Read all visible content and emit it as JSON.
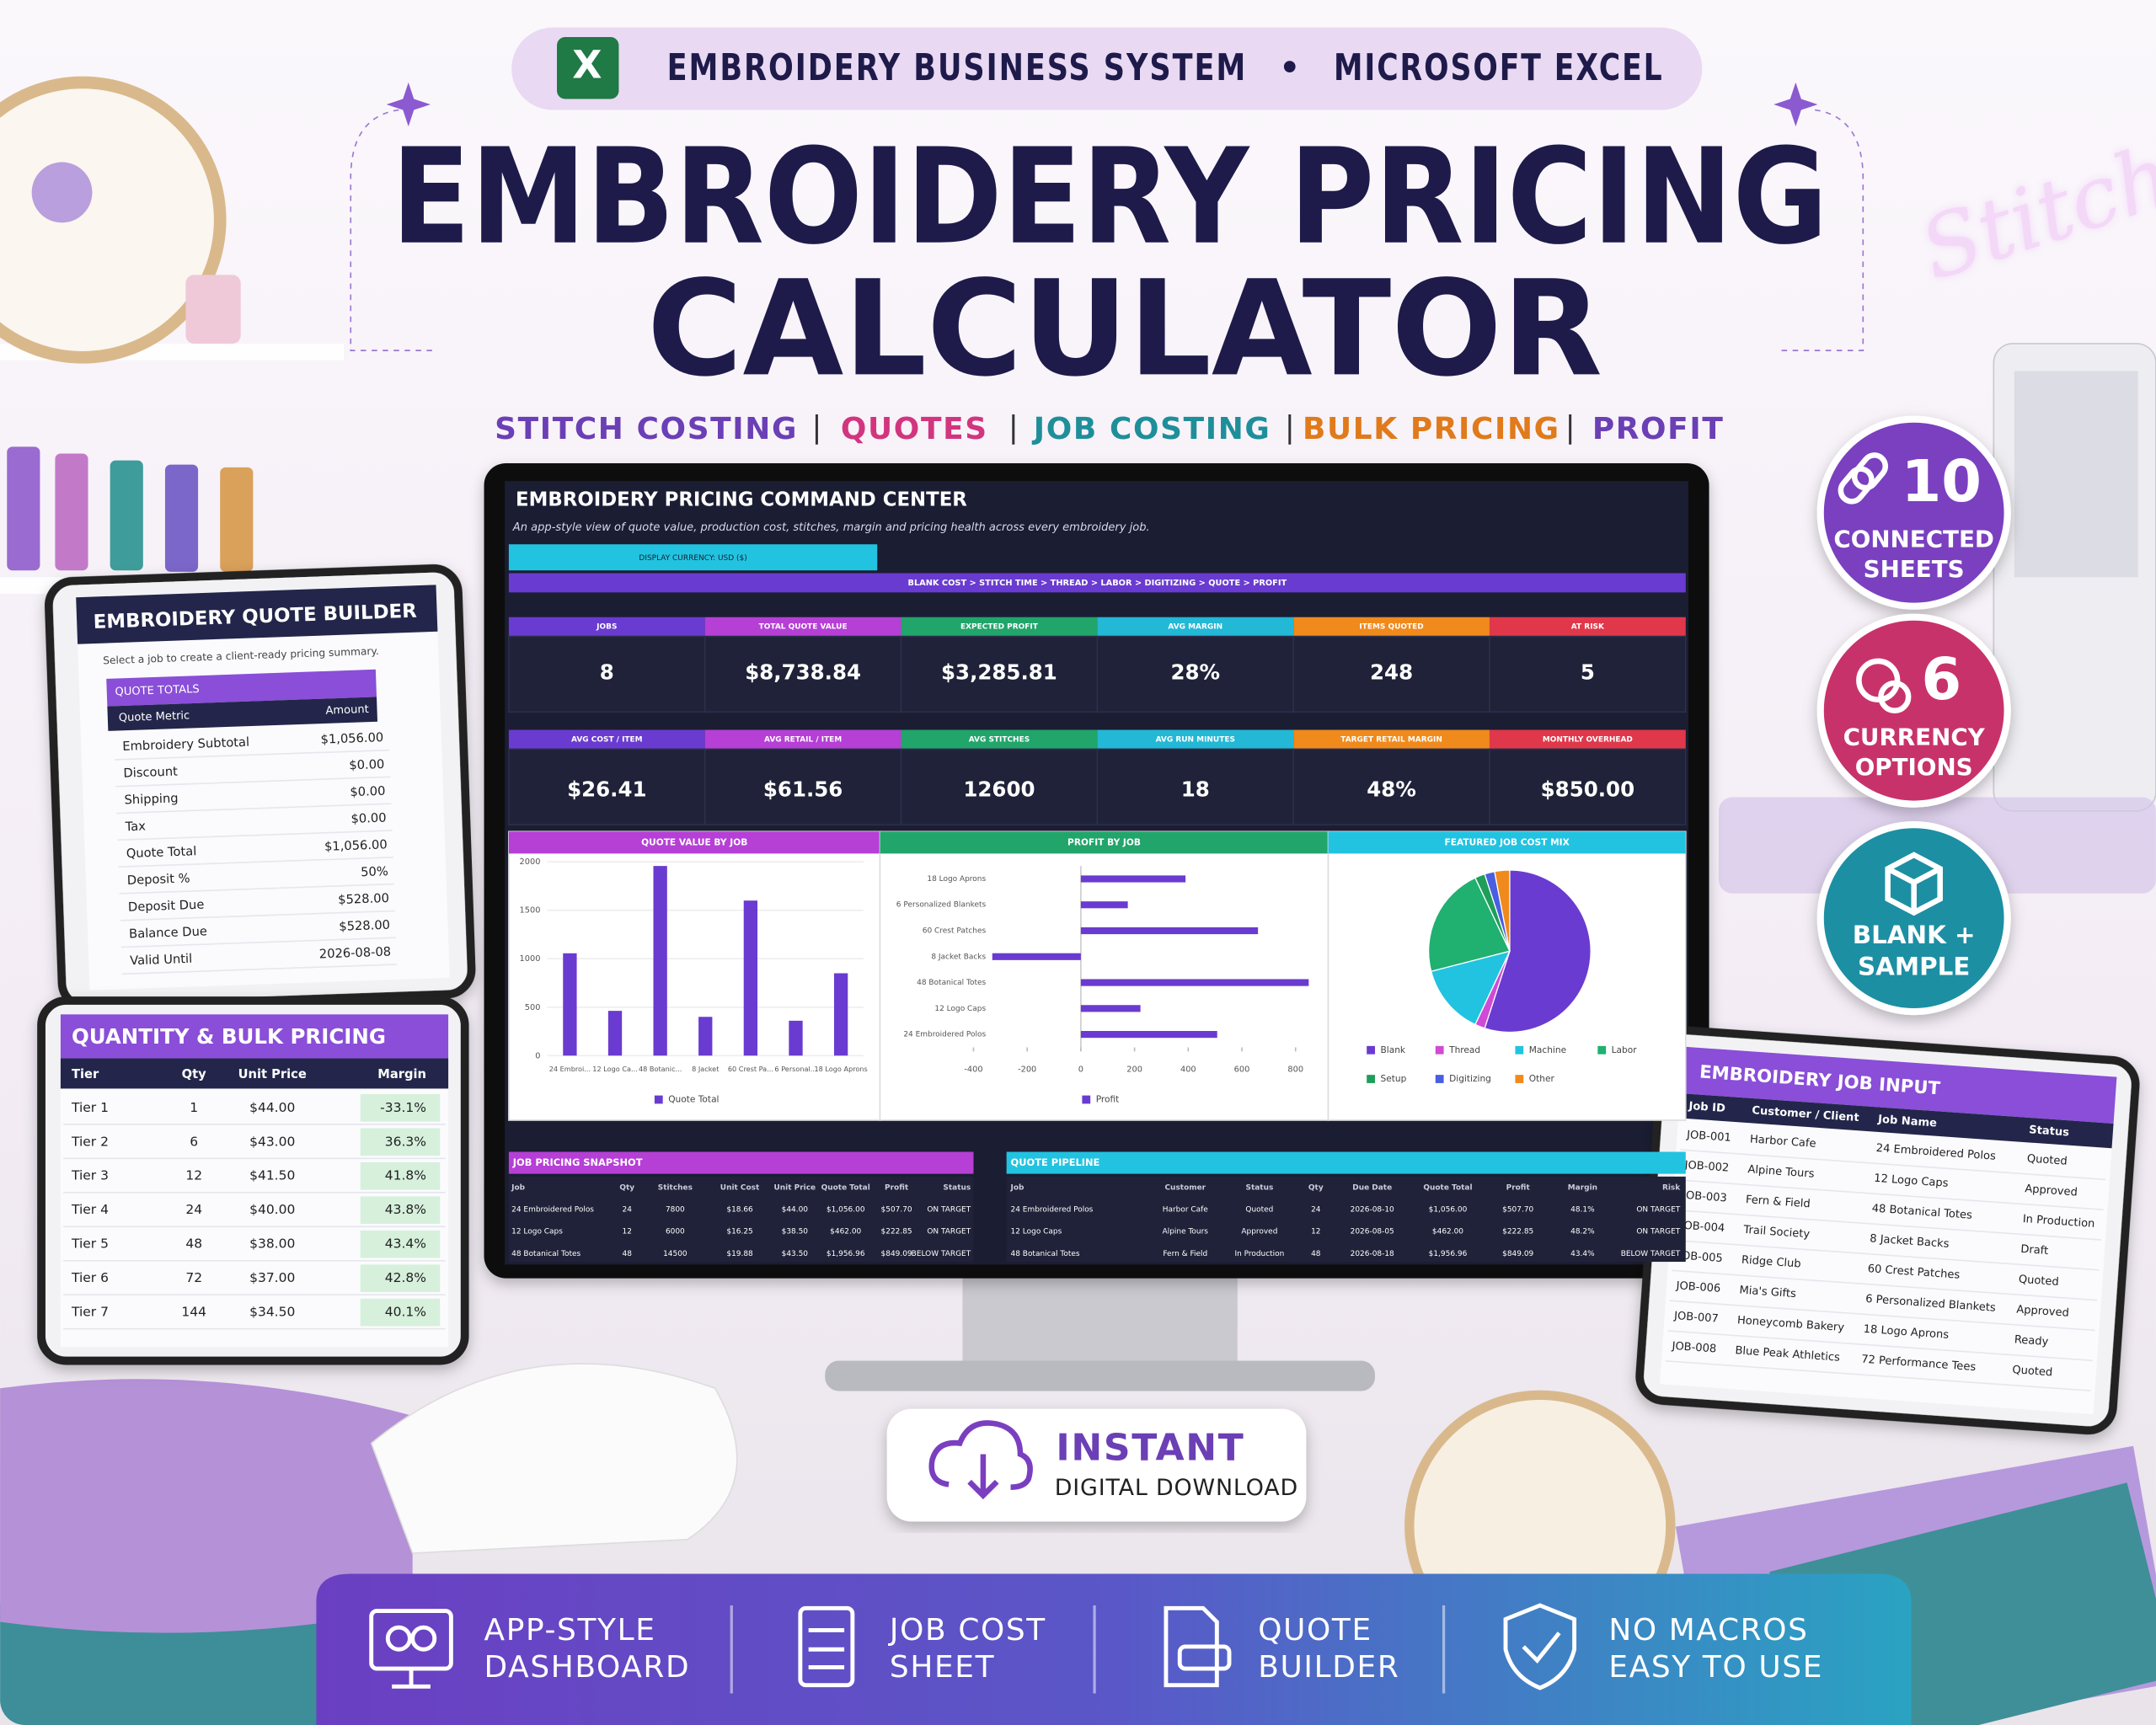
{
  "header": {
    "excel_icon": "X",
    "badge_left": "EMBROIDERY BUSINESS SYSTEM",
    "badge_sep": "•",
    "badge_right": "MICROSOFT EXCEL",
    "title_line1": "EMBROIDERY PRICING",
    "title_line2": "CALCULATOR",
    "features": [
      "STITCH COSTING",
      "QUOTES",
      "JOB COSTING",
      "BULK PRICING",
      "PROFIT"
    ],
    "separator": "|"
  },
  "background_sign": "Stitch",
  "side_badges": [
    {
      "number": "10",
      "line1": "CONNECTED",
      "line2": "SHEETS"
    },
    {
      "number": "6",
      "line1": "CURRENCY",
      "line2": "OPTIONS"
    },
    {
      "line1": "BLANK +",
      "line2": "SAMPLE"
    }
  ],
  "dashboard": {
    "title": "EMBROIDERY PRICING COMMAND CENTER",
    "subtitle": "An app-style view of quote value, production cost, stitches, margin and pricing health across every embroidery job.",
    "currency": "DISPLAY CURRENCY: USD ($)",
    "flow": "BLANK COST  >  STITCH TIME  >  THREAD  >  LABOR  >  DIGITIZING  >  QUOTE  >  PROFIT",
    "kpi_row1": [
      {
        "label": "JOBS",
        "value": "8"
      },
      {
        "label": "TOTAL QUOTE VALUE",
        "value": "$8,738.84"
      },
      {
        "label": "EXPECTED PROFIT",
        "value": "$3,285.81"
      },
      {
        "label": "AVG MARGIN",
        "value": "28%"
      },
      {
        "label": "ITEMS QUOTED",
        "value": "248"
      },
      {
        "label": "AT RISK",
        "value": "5"
      }
    ],
    "kpi_row2": [
      {
        "label": "AVG COST / ITEM",
        "value": "$26.41"
      },
      {
        "label": "AVG RETAIL / ITEM",
        "value": "$61.56"
      },
      {
        "label": "AVG STITCHES",
        "value": "12600"
      },
      {
        "label": "AVG RUN MINUTES",
        "value": "18"
      },
      {
        "label": "TARGET RETAIL MARGIN",
        "value": "48%"
      },
      {
        "label": "MONTHLY OVERHEAD",
        "value": "$850.00"
      }
    ],
    "snapshot": {
      "title": "JOB PRICING SNAPSHOT",
      "columns": [
        "Job",
        "Qty",
        "Stitches",
        "Unit Cost",
        "Unit Price",
        "Quote Total",
        "Profit",
        "Status"
      ],
      "rows": [
        [
          "24 Embroidered Polos",
          "24",
          "7800",
          "$18.66",
          "$44.00",
          "$1,056.00",
          "$507.70",
          "ON TARGET"
        ],
        [
          "12 Logo Caps",
          "12",
          "6000",
          "$16.25",
          "$38.50",
          "$462.00",
          "$222.85",
          "ON TARGET"
        ],
        [
          "48 Botanical Totes",
          "48",
          "14500",
          "$19.88",
          "$43.50",
          "$1,956.96",
          "$849.09",
          "BELOW TARGET"
        ]
      ]
    },
    "pipeline": {
      "title": "QUOTE PIPELINE",
      "columns": [
        "Job",
        "Customer",
        "Status",
        "Qty",
        "Due Date",
        "Quote Total",
        "Profit",
        "Margin",
        "Risk"
      ],
      "rows": [
        [
          "24 Embroidered Polos",
          "Harbor Cafe",
          "Quoted",
          "24",
          "2026-08-10",
          "$1,056.00",
          "$507.70",
          "48.1%",
          "ON TARGET"
        ],
        [
          "12 Logo Caps",
          "Alpine Tours",
          "Approved",
          "12",
          "2026-08-05",
          "$462.00",
          "$222.85",
          "48.2%",
          "ON TARGET"
        ],
        [
          "48 Botanical Totes",
          "Fern & Field",
          "In Production",
          "48",
          "2026-08-18",
          "$1,956.96",
          "$849.09",
          "43.4%",
          "BELOW TARGET"
        ]
      ]
    }
  },
  "chart_data": [
    {
      "type": "bar",
      "title": "QUOTE VALUE BY JOB",
      "categories": [
        "24 Embroi...",
        "12 Logo Ca...",
        "48 Botanic...",
        "8 Jacket",
        "60 Crest Pa...",
        "6 Personal...",
        "18 Logo Aprons"
      ],
      "series": [
        {
          "name": "Quote Total",
          "color": "#6a3bd0",
          "values": [
            1056,
            462,
            1957,
            400,
            1600,
            360,
            850
          ]
        }
      ],
      "ylim": [
        0,
        2000
      ],
      "yticks": [
        0,
        500,
        1000,
        1500,
        2000
      ],
      "grid": true
    },
    {
      "type": "hbar",
      "title": "PROFIT BY JOB",
      "categories": [
        "18 Logo Aprons",
        "6 Personalized Blankets",
        "60 Crest Patches",
        "8 Jacket Backs",
        "48 Botanical Totes",
        "12 Logo Caps",
        "24 Embroidered Polos"
      ],
      "series": [
        {
          "name": "Profit",
          "color": "#6a3bd0",
          "values": [
            390,
            175,
            660,
            -330,
            849,
            222,
            508
          ]
        }
      ],
      "xlim": [
        -400,
        850
      ],
      "xticks": [
        -400,
        -200,
        0,
        200,
        400,
        600,
        800
      ]
    },
    {
      "type": "pie",
      "title": "FEATURED JOB COST MIX",
      "categories": [
        "Blank",
        "Thread",
        "Machine",
        "Labor",
        "Setup",
        "Digitizing",
        "Other"
      ],
      "values": [
        55,
        2,
        14,
        22,
        2,
        2,
        3
      ],
      "colors": [
        "#6a3bd0",
        "#d04ad6",
        "#22c3e0",
        "#20b070",
        "#1f9e5a",
        "#4a5ee0",
        "#f08a1c"
      ]
    }
  ],
  "quote_builder": {
    "title": "EMBROIDERY QUOTE BUILDER",
    "subtitle": "Select a job to create a client-ready pricing summary.",
    "section": "QUOTE TOTALS",
    "columns": [
      "Quote Metric",
      "Amount"
    ],
    "rows": [
      [
        "Embroidery Subtotal",
        "$1,056.00"
      ],
      [
        "Discount",
        "$0.00"
      ],
      [
        "Shipping",
        "$0.00"
      ],
      [
        "Tax",
        "$0.00"
      ],
      [
        "Quote Total",
        "$1,056.00"
      ],
      [
        "Deposit %",
        "50%"
      ],
      [
        "Deposit Due",
        "$528.00"
      ],
      [
        "Balance Due",
        "$528.00"
      ],
      [
        "Valid Until",
        "2026-08-08"
      ]
    ]
  },
  "bulk_pricing": {
    "title": "QUANTITY & BULK PRICING",
    "columns": [
      "Tier",
      "Qty",
      "Unit Price",
      "Margin"
    ],
    "rows": [
      [
        "Tier 1",
        "1",
        "$44.00",
        "-33.1%"
      ],
      [
        "Tier 2",
        "6",
        "$43.00",
        "36.3%"
      ],
      [
        "Tier 3",
        "12",
        "$41.50",
        "41.8%"
      ],
      [
        "Tier 4",
        "24",
        "$40.00",
        "43.8%"
      ],
      [
        "Tier 5",
        "48",
        "$38.00",
        "43.4%"
      ],
      [
        "Tier 6",
        "72",
        "$37.00",
        "42.8%"
      ],
      [
        "Tier 7",
        "144",
        "$34.50",
        "40.1%"
      ]
    ]
  },
  "job_input": {
    "title": "EMBROIDERY JOB INPUT",
    "columns": [
      "Job ID",
      "Customer / Client",
      "Job Name",
      "Status"
    ],
    "rows": [
      [
        "JOB-001",
        "Harbor Cafe",
        "24 Embroidered Polos",
        "Quoted"
      ],
      [
        "JOB-002",
        "Alpine Tours",
        "12 Logo Caps",
        "Approved"
      ],
      [
        "JOB-003",
        "Fern & Field",
        "48 Botanical Totes",
        "In Production"
      ],
      [
        "JOB-004",
        "Trail Society",
        "8 Jacket Backs",
        "Draft"
      ],
      [
        "JOB-005",
        "Ridge Club",
        "60 Crest Patches",
        "Quoted"
      ],
      [
        "JOB-006",
        "Mia's Gifts",
        "6 Personalized Blankets",
        "Approved"
      ],
      [
        "JOB-007",
        "Honeycomb Bakery",
        "18 Logo Aprons",
        "Ready"
      ],
      [
        "JOB-008",
        "Blue Peak Athletics",
        "72 Performance Tees",
        "Quoted"
      ]
    ]
  },
  "download": {
    "line1": "INSTANT",
    "line2": "DIGITAL DOWNLOAD"
  },
  "footer": [
    {
      "line1": "APP-STYLE",
      "line2": "DASHBOARD"
    },
    {
      "line1": "JOB COST",
      "line2": "SHEET"
    },
    {
      "line1": "QUOTE",
      "line2": "BUILDER"
    },
    {
      "line1": "NO MACROS",
      "line2": "EASY TO USE"
    }
  ]
}
